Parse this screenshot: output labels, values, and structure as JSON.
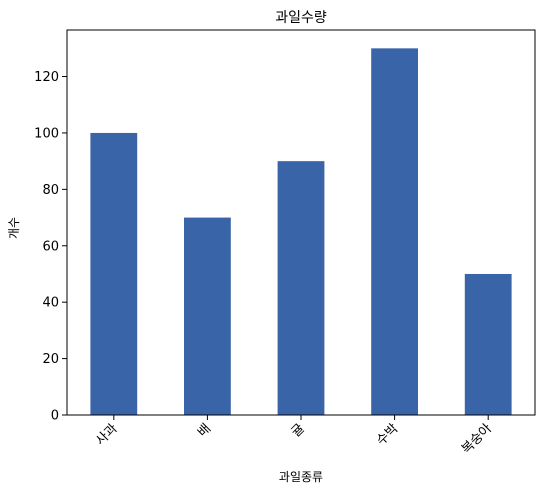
{
  "chart_data": {
    "type": "bar",
    "title": "과일수량",
    "xlabel": "과일종류",
    "ylabel": "개수",
    "categories": [
      "사과",
      "배",
      "귤",
      "수박",
      "복숭아"
    ],
    "values": [
      100,
      70,
      90,
      130,
      50
    ],
    "ylim": [
      0,
      136.5
    ],
    "yticks": [
      0,
      20,
      40,
      60,
      80,
      100,
      120
    ],
    "xtick_rotation": 45,
    "bar_color": "#3a64a8",
    "grid": false,
    "legend": "none"
  }
}
